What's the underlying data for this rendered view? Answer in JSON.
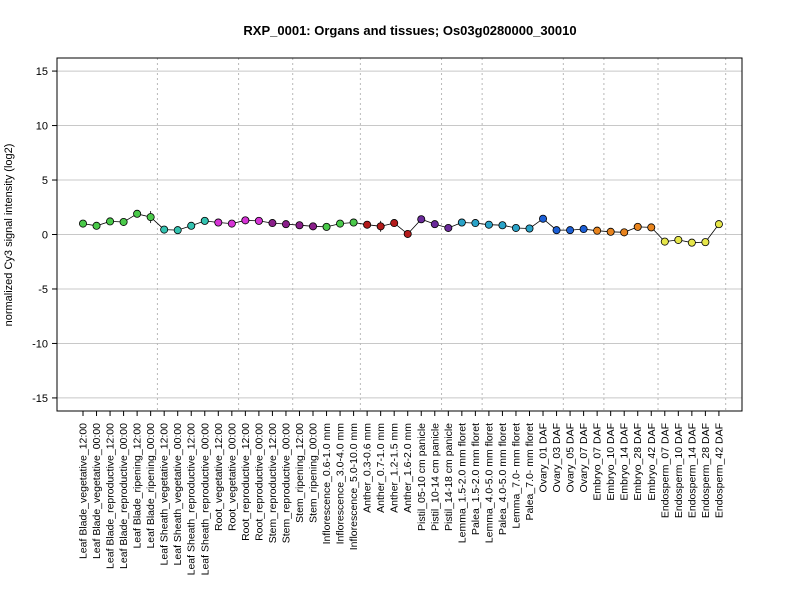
{
  "chart_data": {
    "type": "line",
    "title": "RXP_0001: Organs and tissues; Os03g0280000_30010",
    "ylabel": "normalized Cy3 signal intensity (log2)",
    "xlabel": "",
    "ylim": [
      -16.2,
      16.2
    ],
    "yticks": [
      -15,
      -10,
      -5,
      0,
      5,
      10,
      15
    ],
    "grid": "horizontal at y ticks; vertical dotted group separators",
    "legend": "none",
    "group_separators_after_index": [
      5,
      11,
      15,
      20,
      26,
      29,
      35,
      38,
      42,
      47
    ],
    "points": [
      {
        "label": "Leaf Blade_vegetative_12:00",
        "value": 1.0,
        "err": 0.15,
        "color": "#4ac94a"
      },
      {
        "label": "Leaf Blade_vegetative_00:00",
        "value": 0.8,
        "err": 0.2,
        "color": "#4ac94a"
      },
      {
        "label": "Leaf Blade_reproductive_12:00",
        "value": 1.2,
        "err": 0.15,
        "color": "#4ac94a"
      },
      {
        "label": "Leaf Blade_reproductive_00:00",
        "value": 1.15,
        "err": 0.2,
        "color": "#4ac94a"
      },
      {
        "label": "Leaf Blade_ripening_12:00",
        "value": 1.9,
        "err": 0.15,
        "color": "#4ac94a"
      },
      {
        "label": "Leaf Blade_ripening_00:00",
        "value": 1.6,
        "err": 0.55,
        "color": "#4ac94a"
      },
      {
        "label": "Leaf Sheath_vegetative_12:00",
        "value": 0.45,
        "err": 0.15,
        "color": "#33c2b0"
      },
      {
        "label": "Leaf Sheath_vegetative_00:00",
        "value": 0.4,
        "err": 0.1,
        "color": "#33c2b0"
      },
      {
        "label": "Leaf Sheath_reproductive_12:00",
        "value": 0.8,
        "err": 0.15,
        "color": "#33c2b0"
      },
      {
        "label": "Leaf Sheath_reproductive_00:00",
        "value": 1.25,
        "err": 0.1,
        "color": "#33c2b0"
      },
      {
        "label": "Root_vegetative_12:00",
        "value": 1.1,
        "err": 0.1,
        "color": "#d633d6"
      },
      {
        "label": "Root_vegetative_00:00",
        "value": 1.0,
        "err": 0.15,
        "color": "#d633d6"
      },
      {
        "label": "Root_reproductive_12:00",
        "value": 1.3,
        "err": 0.1,
        "color": "#d633d6"
      },
      {
        "label": "Root_reproductive_00:00",
        "value": 1.25,
        "err": 0.1,
        "color": "#d633d6"
      },
      {
        "label": "Stem_reproductive_12:00",
        "value": 1.05,
        "err": 0.2,
        "color": "#8a1f8a"
      },
      {
        "label": "Stem_reproductive_00:00",
        "value": 0.95,
        "err": 0.15,
        "color": "#8a1f8a"
      },
      {
        "label": "Stem_ripening_12:00",
        "value": 0.85,
        "err": 0.15,
        "color": "#8a1f8a"
      },
      {
        "label": "Stem_ripening_00:00",
        "value": 0.75,
        "err": 0.1,
        "color": "#8a1f8a"
      },
      {
        "label": "Inflorescence_0.6-1.0 mm",
        "value": 0.7,
        "err": 0.1,
        "color": "#4ac94a"
      },
      {
        "label": "Inflorescence_3.0-4.0 mm",
        "value": 1.0,
        "err": 0.1,
        "color": "#4ac94a"
      },
      {
        "label": "Inflorescence_5.0-10.0 mm",
        "value": 1.1,
        "err": 0.1,
        "color": "#4ac94a"
      },
      {
        "label": "Anther_0.3-0.6 mm",
        "value": 0.9,
        "err": 0.15,
        "color": "#b31b1b"
      },
      {
        "label": "Anther_0.7-1.0 mm",
        "value": 0.75,
        "err": 0.5,
        "color": "#b31b1b"
      },
      {
        "label": "Anther_1.2-1.5 mm",
        "value": 1.05,
        "err": 0.15,
        "color": "#b31b1b"
      },
      {
        "label": "Anther_1.6-2.0 mm",
        "value": 0.05,
        "err": 0.15,
        "color": "#b31b1b"
      },
      {
        "label": "Pistil_05-10 cm panicle",
        "value": 1.4,
        "err": 0.15,
        "color": "#6a2a9a"
      },
      {
        "label": "Pistil_10-14 cm panicle",
        "value": 0.95,
        "err": 0.15,
        "color": "#6a2a9a"
      },
      {
        "label": "Pistil_14-18 cm panicle",
        "value": 0.6,
        "err": 0.15,
        "color": "#6a2a9a"
      },
      {
        "label": "Lemma_1.5-2.0 mm floret",
        "value": 1.1,
        "err": 0.1,
        "color": "#2aa3c8"
      },
      {
        "label": "Palea_1.5-2.0 mm floret",
        "value": 1.05,
        "err": 0.15,
        "color": "#2aa3c8"
      },
      {
        "label": "Lemma_4.0-5.0 mm floret",
        "value": 0.9,
        "err": 0.1,
        "color": "#2aa3c8"
      },
      {
        "label": "Palea_4.0-5.0 mm floret",
        "value": 0.85,
        "err": 0.1,
        "color": "#2aa3c8"
      },
      {
        "label": "Lemma_7.0- mm floret",
        "value": 0.6,
        "err": 0.1,
        "color": "#2aa3c8"
      },
      {
        "label": "Palea_7.0- mm floret",
        "value": 0.55,
        "err": 0.35,
        "color": "#2aa3c8"
      },
      {
        "label": "Ovary_01 DAF",
        "value": 1.45,
        "err": 0.15,
        "color": "#1c5fd6"
      },
      {
        "label": "Ovary_03 DAF",
        "value": 0.4,
        "err": 0.1,
        "color": "#1c5fd6"
      },
      {
        "label": "Ovary_05 DAF",
        "value": 0.4,
        "err": 0.15,
        "color": "#1c5fd6"
      },
      {
        "label": "Ovary_07 DAF",
        "value": 0.5,
        "err": 0.15,
        "color": "#1c5fd6"
      },
      {
        "label": "Embryo_07 DAF",
        "value": 0.35,
        "err": 0.35,
        "color": "#e8841e"
      },
      {
        "label": "Embryo_10 DAF",
        "value": 0.25,
        "err": 0.15,
        "color": "#e8841e"
      },
      {
        "label": "Embryo_14 DAF",
        "value": 0.2,
        "err": 0.35,
        "color": "#e8841e"
      },
      {
        "label": "Embryo_28 DAF",
        "value": 0.7,
        "err": 0.15,
        "color": "#e8841e"
      },
      {
        "label": "Embryo_42 DAF",
        "value": 0.65,
        "err": 0.15,
        "color": "#e8841e"
      },
      {
        "label": "Endosperm_07 DAF",
        "value": -0.65,
        "err": 0.15,
        "color": "#e6e64a"
      },
      {
        "label": "Endosperm_10 DAF",
        "value": -0.5,
        "err": 0.15,
        "color": "#e6e64a"
      },
      {
        "label": "Endosperm_14 DAF",
        "value": -0.75,
        "err": 0.1,
        "color": "#e6e64a"
      },
      {
        "label": "Endosperm_28 DAF",
        "value": -0.7,
        "err": 0.2,
        "color": "#e6e64a"
      },
      {
        "label": "Endosperm_42 DAF",
        "value": 0.95,
        "err": 0.15,
        "color": "#e6e64a"
      }
    ]
  }
}
